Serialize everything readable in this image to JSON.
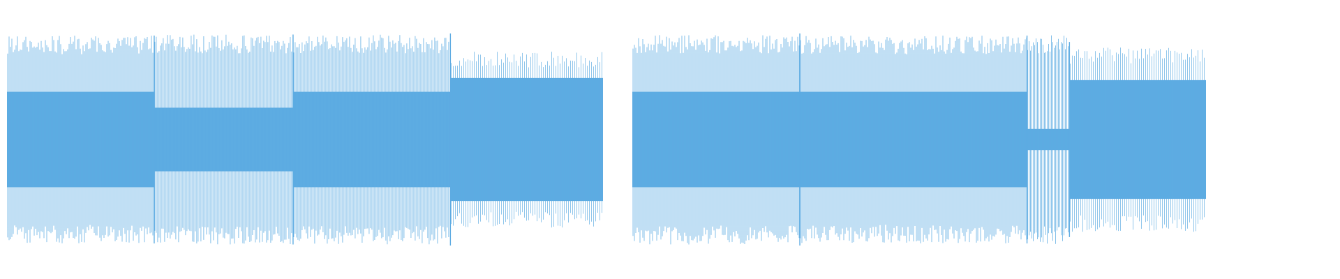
{
  "waveform": {
    "color": "#5dabe2",
    "clips": [
      {
        "segments": [
          {
            "core": 0.45,
            "peak": 0.98,
            "sparse": false
          },
          {
            "core": 0.3,
            "peak": 0.99,
            "sparse": false
          },
          {
            "core": 0.45,
            "peak": 0.99,
            "sparse": false
          },
          {
            "core": 0.58,
            "peak": 0.83,
            "sparse": true
          }
        ],
        "transients": [
          {
            "position": 0.247,
            "strength": 0.98
          },
          {
            "position": 0.48,
            "strength": 0.99
          },
          {
            "position": 0.744,
            "strength": 1.0
          }
        ]
      },
      {
        "segments": [
          {
            "core": 0.45,
            "peak": 0.99,
            "sparse": false
          },
          {
            "core": 0.45,
            "peak": 0.98,
            "sparse": false
          },
          {
            "core": 0.1,
            "peak": 0.99,
            "sparse": false
          },
          {
            "core": 0.56,
            "peak": 0.87,
            "sparse": true
          }
        ],
        "transients": [
          {
            "position": 0.292,
            "strength": 1.0
          },
          {
            "position": 0.688,
            "strength": 0.98
          },
          {
            "position": 0.762,
            "strength": 0.92
          }
        ]
      }
    ]
  }
}
